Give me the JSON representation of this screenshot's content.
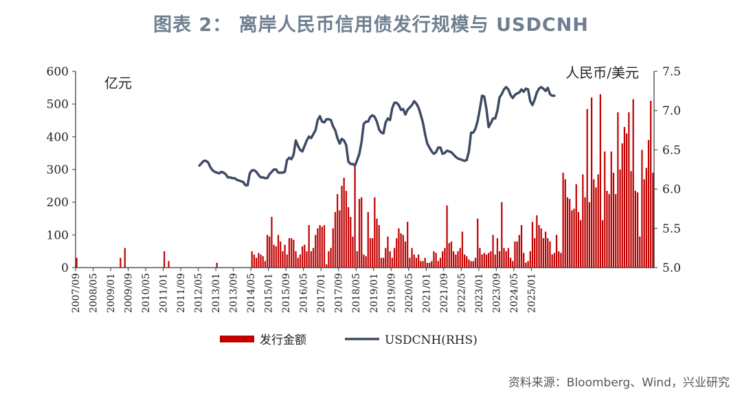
{
  "title": "图表 2： 离岸人民币信用债发行规模与 USDCNH",
  "source": "资料来源：Bloomberg、Wind，兴业研究",
  "chart_data": {
    "type": "bar",
    "left_axis_unit": "亿元",
    "right_axis_unit": "人民币/美元",
    "ylim": [
      0,
      600
    ],
    "yticks": [
      0,
      100,
      200,
      300,
      400,
      500,
      600
    ],
    "y2lim": [
      5.0,
      7.5
    ],
    "y2ticks": [
      "5.0",
      "5.5",
      "6.0",
      "6.5",
      "7.0",
      "7.5"
    ],
    "x_tick_labels": [
      "2007/09",
      "2008/05",
      "2009/01",
      "2009/09",
      "2010/05",
      "2011/01",
      "2011/09",
      "2012/05",
      "2013/01",
      "2013/09",
      "2014/05",
      "2015/01",
      "2015/09",
      "2016/05",
      "2017/01",
      "2017/09",
      "2018/05",
      "2019/01",
      "2019/09",
      "2020/05",
      "2021/01",
      "2021/09",
      "2022/05",
      "2023/01",
      "2023/09",
      "2024/05",
      "2025/01"
    ],
    "start_month": "2007/09",
    "legend": {
      "placement": "bottom-center"
    },
    "series": [
      {
        "name": "发行金额",
        "kind": "bar",
        "color": "#c00000",
        "axis": "left",
        "values": [
          30,
          0,
          0,
          0,
          0,
          0,
          0,
          0,
          0,
          0,
          0,
          0,
          0,
          0,
          0,
          0,
          0,
          0,
          0,
          0,
          30,
          0,
          60,
          0,
          0,
          0,
          0,
          0,
          0,
          0,
          0,
          0,
          0,
          0,
          0,
          0,
          0,
          0,
          0,
          0,
          50,
          0,
          20,
          0,
          0,
          0,
          0,
          0,
          0,
          0,
          0,
          0,
          0,
          0,
          0,
          0,
          0,
          0,
          0,
          0,
          0,
          0,
          0,
          0,
          15,
          0,
          0,
          0,
          0,
          0,
          0,
          0,
          0,
          0,
          0,
          0,
          0,
          0,
          0,
          0,
          50,
          40,
          30,
          45,
          40,
          35,
          20,
          100,
          95,
          155,
          70,
          65,
          100,
          80,
          50,
          70,
          40,
          90,
          90,
          85,
          50,
          30,
          40,
          65,
          70,
          50,
          130,
          50,
          60,
          100,
          120,
          130,
          125,
          130,
          10,
          50,
          60,
          120,
          170,
          225,
          175,
          250,
          275,
          235,
          185,
          155,
          95,
          310,
          50,
          210,
          215,
          40,
          35,
          170,
          90,
          90,
          215,
          150,
          130,
          30,
          30,
          60,
          95,
          50,
          30,
          60,
          90,
          120,
          105,
          100,
          80,
          140,
          30,
          60,
          40,
          30,
          40,
          20,
          20,
          30,
          15,
          15,
          20,
          50,
          45,
          20,
          30,
          50,
          60,
          190,
          75,
          80,
          50,
          40,
          50,
          60,
          110,
          40,
          35,
          25,
          20,
          20,
          30,
          150,
          60,
          40,
          45,
          40,
          45,
          50,
          100,
          40,
          90,
          50,
          200,
          60,
          50,
          60,
          30,
          20,
          80,
          80,
          100,
          130,
          45,
          15,
          20,
          50,
          140,
          90,
          160,
          130,
          120,
          90,
          110,
          90,
          80,
          40,
          45,
          100,
          50,
          45,
          290,
          270,
          215,
          210,
          175,
          180,
          255,
          170,
          145,
          285,
          215,
          485,
          200,
          520,
          270,
          245,
          285,
          530,
          145,
          355,
          235,
          225,
          355,
          290,
          225,
          475,
          300,
          380,
          430,
          410,
          475,
          295,
          515,
          235,
          230,
          95,
          360,
          270,
          305,
          390,
          510,
          290
        ]
      },
      {
        "name": "USDCNH(RHS)",
        "kind": "line",
        "color": "#3e4a64",
        "axis": "right",
        "start_index": 56,
        "values": [
          6.3,
          6.33,
          6.36,
          6.36,
          6.34,
          6.28,
          6.24,
          6.22,
          6.21,
          6.2,
          6.22,
          6.21,
          6.19,
          6.15,
          6.15,
          6.14,
          6.14,
          6.12,
          6.11,
          6.1,
          6.09,
          6.05,
          6.05,
          6.2,
          6.24,
          6.24,
          6.22,
          6.18,
          6.15,
          6.15,
          6.14,
          6.14,
          6.19,
          6.22,
          6.25,
          6.25,
          6.21,
          6.21,
          6.21,
          6.22,
          6.37,
          6.4,
          6.38,
          6.44,
          6.62,
          6.55,
          6.5,
          6.48,
          6.55,
          6.62,
          6.67,
          6.65,
          6.7,
          6.75,
          6.88,
          6.93,
          6.86,
          6.85,
          6.89,
          6.89,
          6.88,
          6.8,
          6.75,
          6.65,
          6.58,
          6.64,
          6.62,
          6.56,
          6.35,
          6.32,
          6.32,
          6.3,
          6.37,
          6.45,
          6.6,
          6.83,
          6.86,
          6.86,
          6.92,
          6.94,
          6.92,
          6.86,
          6.76,
          6.72,
          6.71,
          6.85,
          6.9,
          6.88,
          7.03,
          7.1,
          7.1,
          7.07,
          7.01,
          7.02,
          6.95,
          7.01,
          7.04,
          7.07,
          7.12,
          7.09,
          7.04,
          6.95,
          6.85,
          6.7,
          6.58,
          6.53,
          6.48,
          6.45,
          6.47,
          6.53,
          6.53,
          6.45,
          6.46,
          6.49,
          6.48,
          6.47,
          6.44,
          6.41,
          6.39,
          6.38,
          6.37,
          6.36,
          6.37,
          6.48,
          6.72,
          6.72,
          6.77,
          6.87,
          7.02,
          7.19,
          7.18,
          7.02,
          6.79,
          6.84,
          6.9,
          6.9,
          7.0,
          7.17,
          7.21,
          7.27,
          7.3,
          7.27,
          7.2,
          7.16,
          7.2,
          7.22,
          7.23,
          7.27,
          7.24,
          7.28,
          7.27,
          7.12,
          7.07,
          7.14,
          7.23,
          7.28,
          7.3,
          7.28,
          7.25,
          7.29,
          7.21,
          7.19,
          7.19
        ]
      }
    ]
  }
}
